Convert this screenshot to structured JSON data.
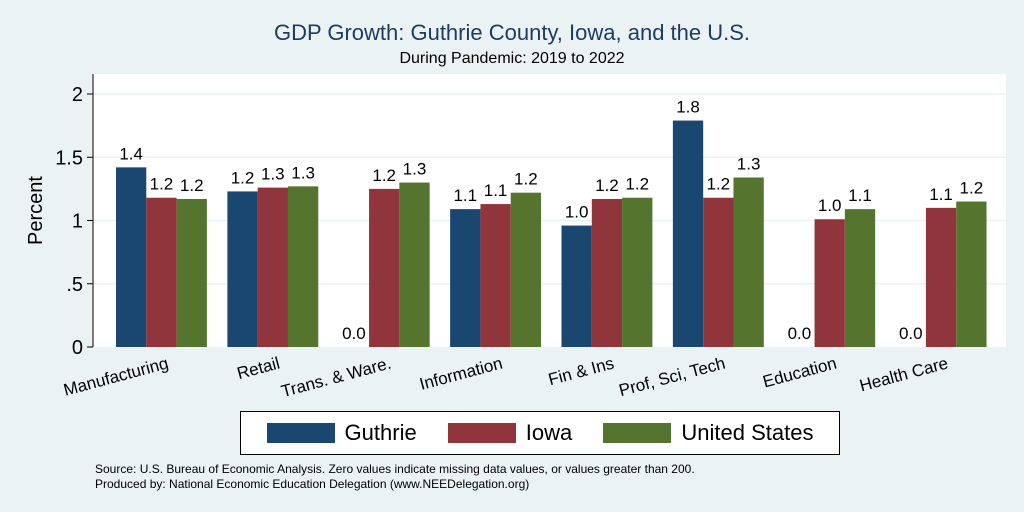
{
  "chart_data": {
    "type": "bar",
    "title": "GDP Growth: Guthrie County, Iowa, and the U.S.",
    "subtitle": "During Pandemic: 2019 to 2022",
    "ylabel": "Percent",
    "xlabel": "",
    "ylim": [
      0,
      2.15
    ],
    "yticks": [
      0,
      0.5,
      1,
      1.5,
      2
    ],
    "ytick_labels": [
      "0",
      ".5",
      "1",
      "1.5",
      "2"
    ],
    "grid": true,
    "legend_position": "bottom",
    "categories": [
      "Manufacturing",
      "Retail",
      "Trans. & Ware.",
      "Information",
      "Fin & Ins",
      "Prof, Sci, Tech",
      "Education",
      "Health Care"
    ],
    "series": [
      {
        "name": "Guthrie",
        "color": "#1a476f",
        "values": [
          1.42,
          1.23,
          0.0,
          1.09,
          0.96,
          1.79,
          0.0,
          0.0
        ],
        "labels": [
          "1.4",
          "1.2",
          "0.0",
          "1.1",
          "1.0",
          "1.8",
          "0.0",
          "0.0"
        ]
      },
      {
        "name": "Iowa",
        "color": "#90353b",
        "values": [
          1.18,
          1.26,
          1.25,
          1.13,
          1.17,
          1.18,
          1.01,
          1.1
        ],
        "labels": [
          "1.2",
          "1.3",
          "1.2",
          "1.1",
          "1.2",
          "1.2",
          "1.0",
          "1.1"
        ]
      },
      {
        "name": "United States",
        "color": "#55752f",
        "values": [
          1.17,
          1.27,
          1.3,
          1.22,
          1.18,
          1.34,
          1.09,
          1.15
        ],
        "labels": [
          "1.2",
          "1.3",
          "1.3",
          "1.2",
          "1.2",
          "1.3",
          "1.1",
          "1.2"
        ]
      }
    ]
  },
  "notes": {
    "source": "Source: U.S. Bureau of Economic Analysis. Zero values indicate missing data values, or values greater than 200.",
    "produced": "Produced by: National Economic Education Delegation (www.NEEDelegation.org)"
  }
}
